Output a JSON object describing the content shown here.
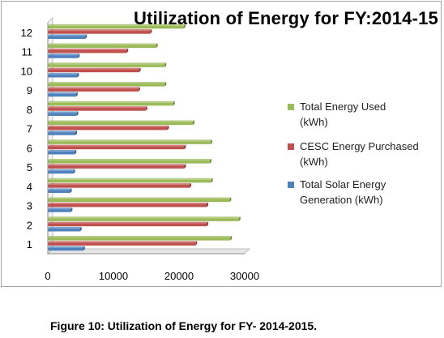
{
  "caption": "Figure 10: Utilization of Energy for FY- 2014-2015.",
  "chart_data": {
    "type": "bar",
    "orientation": "horizontal",
    "title": "Utilization of Energy for FY:2014-15",
    "xlabel": "",
    "ylabel": "",
    "categories": [
      "1",
      "2",
      "3",
      "4",
      "5",
      "6",
      "7",
      "8",
      "9",
      "10",
      "11",
      "12"
    ],
    "xlim": [
      0,
      30000
    ],
    "x_ticks": [
      0,
      10000,
      20000,
      30000
    ],
    "grid": false,
    "legend_position": "right",
    "series": [
      {
        "name": "Total Solar Energy Generation (kWh)",
        "color": "#4f81bd",
        "values": [
          5400,
          4900,
          3500,
          3400,
          3900,
          4100,
          4200,
          4400,
          4300,
          4500,
          4600,
          5700
        ]
      },
      {
        "name": "CESC Energy  Purchased (kWh)",
        "color": "#c0504d",
        "values": [
          22500,
          24200,
          24200,
          21600,
          20800,
          20800,
          18200,
          14900,
          13800,
          13900,
          12000,
          15600
        ]
      },
      {
        "name": "Total Energy Used (kWh)",
        "color": "#9bbb59",
        "values": [
          27800,
          29100,
          27700,
          24900,
          24700,
          24800,
          22100,
          19100,
          17800,
          17800,
          16500,
          20700
        ]
      }
    ]
  },
  "legend": [
    {
      "line1": "Total Energy Used",
      "line2": "(kWh)",
      "color": "#9bbb59"
    },
    {
      "line1": "CESC Energy  Purchased",
      "line2": "(kWh)",
      "color": "#c0504d"
    },
    {
      "line1": "Total Solar Energy",
      "line2": "Generation (kWh)",
      "color": "#4f81bd"
    }
  ]
}
